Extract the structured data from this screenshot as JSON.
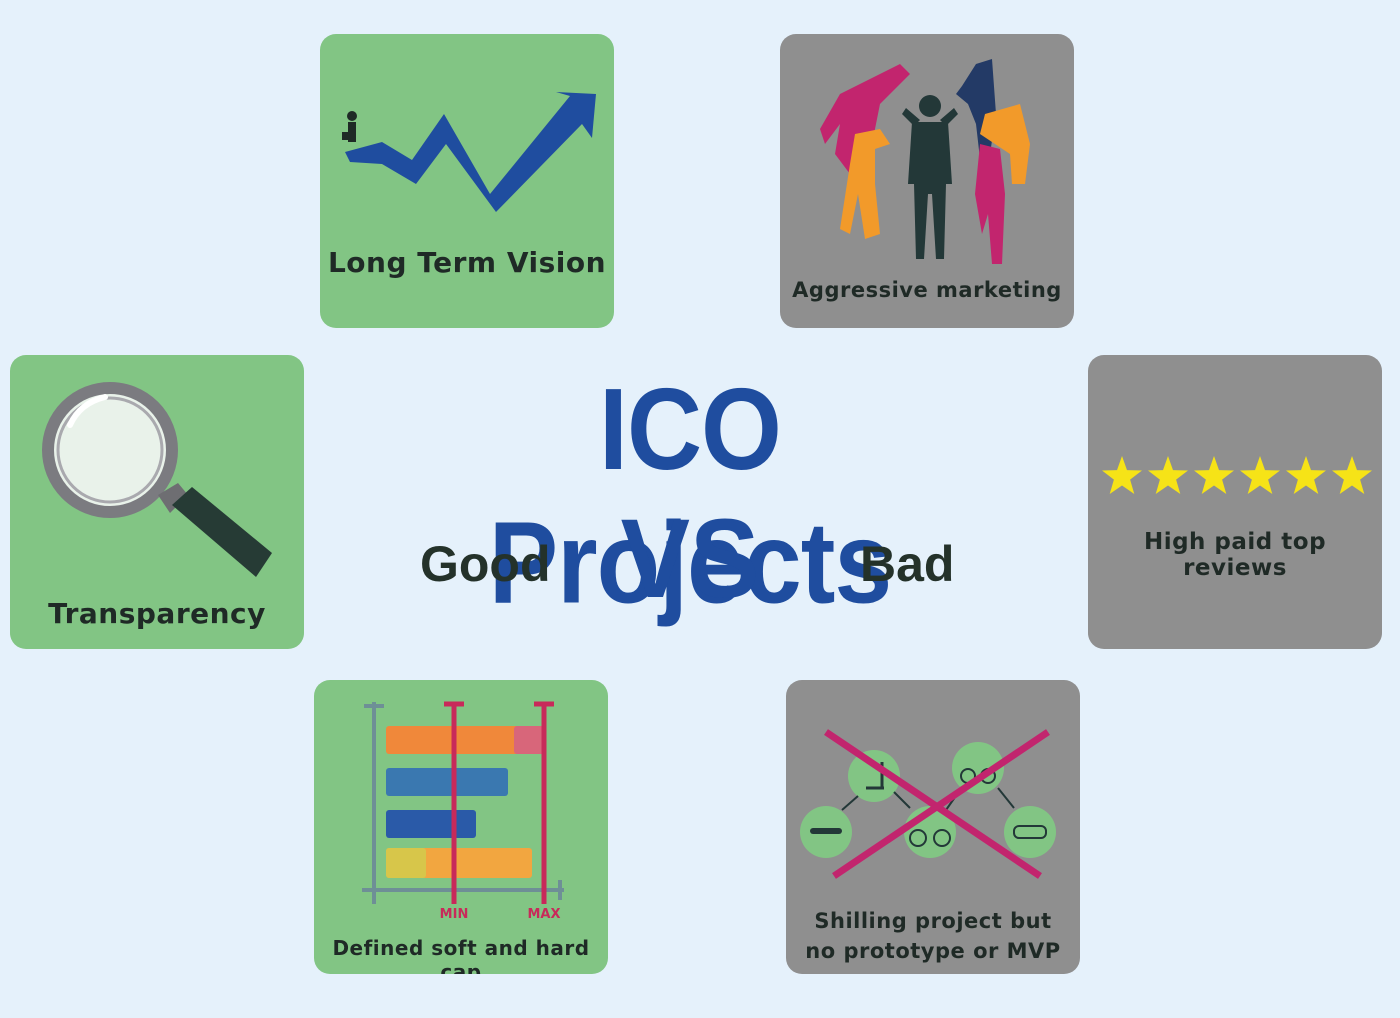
{
  "title": "ICO Projects",
  "vs": "VS",
  "good_label": "Good",
  "bad_label": "Bad",
  "colors": {
    "background": "#e5f1fb",
    "good_card": "#82c584",
    "bad_card": "#8f8f8f",
    "title_blue": "#1f4d9f",
    "star_yellow": "#f6e317"
  },
  "good_items": {
    "long_term_vision": {
      "label": "Long Term Vision",
      "icon": "rising-arrow-icon"
    },
    "transparency": {
      "label": "Transparency",
      "icon": "magnifying-glass-icon"
    },
    "soft_hard_cap": {
      "label": "Defined soft and hard cap",
      "icon": "cap-bar-chart-icon",
      "min_label": "MIN",
      "max_label": "MAX"
    }
  },
  "bad_items": {
    "aggressive_marketing": {
      "label": "Aggressive marketing",
      "icon": "megaphone-crowd-icon"
    },
    "paid_reviews": {
      "label": "High paid top reviews",
      "icon": "six-stars-icon",
      "stars": 6
    },
    "no_prototype": {
      "label_line1": "Shilling project but",
      "label_line2": "no prototype or MVP",
      "icon": "crossed-mvp-path-icon"
    }
  }
}
